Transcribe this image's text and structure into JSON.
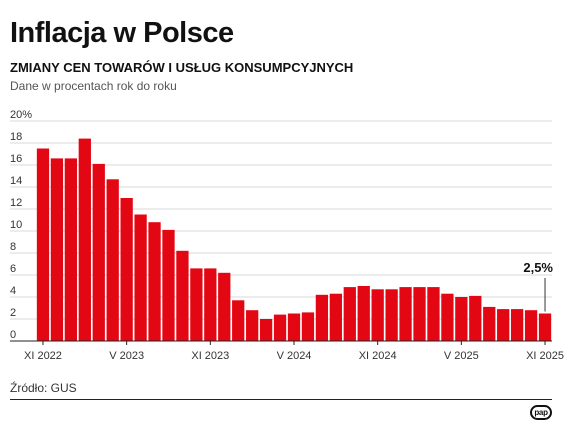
{
  "title": "Inflacja w Polsce",
  "subtitle": "ZMIANY CEN TOWARÓW I USŁUG KONSUMPCYJNYCH",
  "subnote": "Dane w procentach rok do roku",
  "source": "Źródło: GUS",
  "logo_text": "pap",
  "chart_data": {
    "type": "bar",
    "x": [
      "2022-11",
      "2022-12",
      "2023-01",
      "2023-02",
      "2023-03",
      "2023-04",
      "2023-05",
      "2023-06",
      "2023-07",
      "2023-08",
      "2023-09",
      "2023-10",
      "2023-11",
      "2023-12",
      "2024-01",
      "2024-02",
      "2024-03",
      "2024-04",
      "2024-05",
      "2024-06",
      "2024-07",
      "2024-08",
      "2024-09",
      "2024-10",
      "2024-11",
      "2024-12",
      "2025-01",
      "2025-02",
      "2025-03",
      "2025-04",
      "2025-05",
      "2025-06",
      "2025-07",
      "2025-08",
      "2025-09",
      "2025-10",
      "2025-11"
    ],
    "values": [
      17.5,
      16.6,
      16.6,
      18.4,
      16.1,
      14.7,
      13.0,
      11.5,
      10.8,
      10.1,
      8.2,
      6.6,
      6.6,
      6.2,
      3.7,
      2.8,
      2.0,
      2.4,
      2.5,
      2.6,
      4.2,
      4.3,
      4.9,
      5.0,
      4.7,
      4.7,
      4.9,
      4.9,
      4.9,
      4.3,
      4.0,
      4.1,
      3.1,
      2.9,
      2.9,
      2.8,
      2.5
    ],
    "ylim": [
      0,
      20
    ],
    "yticks": [
      0,
      2,
      4,
      6,
      8,
      10,
      12,
      14,
      16,
      18,
      20
    ],
    "ytick_labels": [
      "0",
      "2",
      "4",
      "6",
      "8",
      "10",
      "12",
      "14",
      "16",
      "18",
      "20%"
    ],
    "xtick_labels": [
      {
        "x": "2022-11",
        "label": "XI 2022"
      },
      {
        "x": "2023-05",
        "label": "V 2023"
      },
      {
        "x": "2023-11",
        "label": "XI 2023"
      },
      {
        "x": "2024-05",
        "label": "V 2024"
      },
      {
        "x": "2024-11",
        "label": "XI 2024"
      },
      {
        "x": "2025-05",
        "label": "V 2025"
      },
      {
        "x": "2025-11",
        "label": "XI 2025"
      }
    ],
    "annotation": {
      "x": "2025-11",
      "label": "2,5%"
    },
    "grid": true,
    "bar_color": "#e30613"
  }
}
